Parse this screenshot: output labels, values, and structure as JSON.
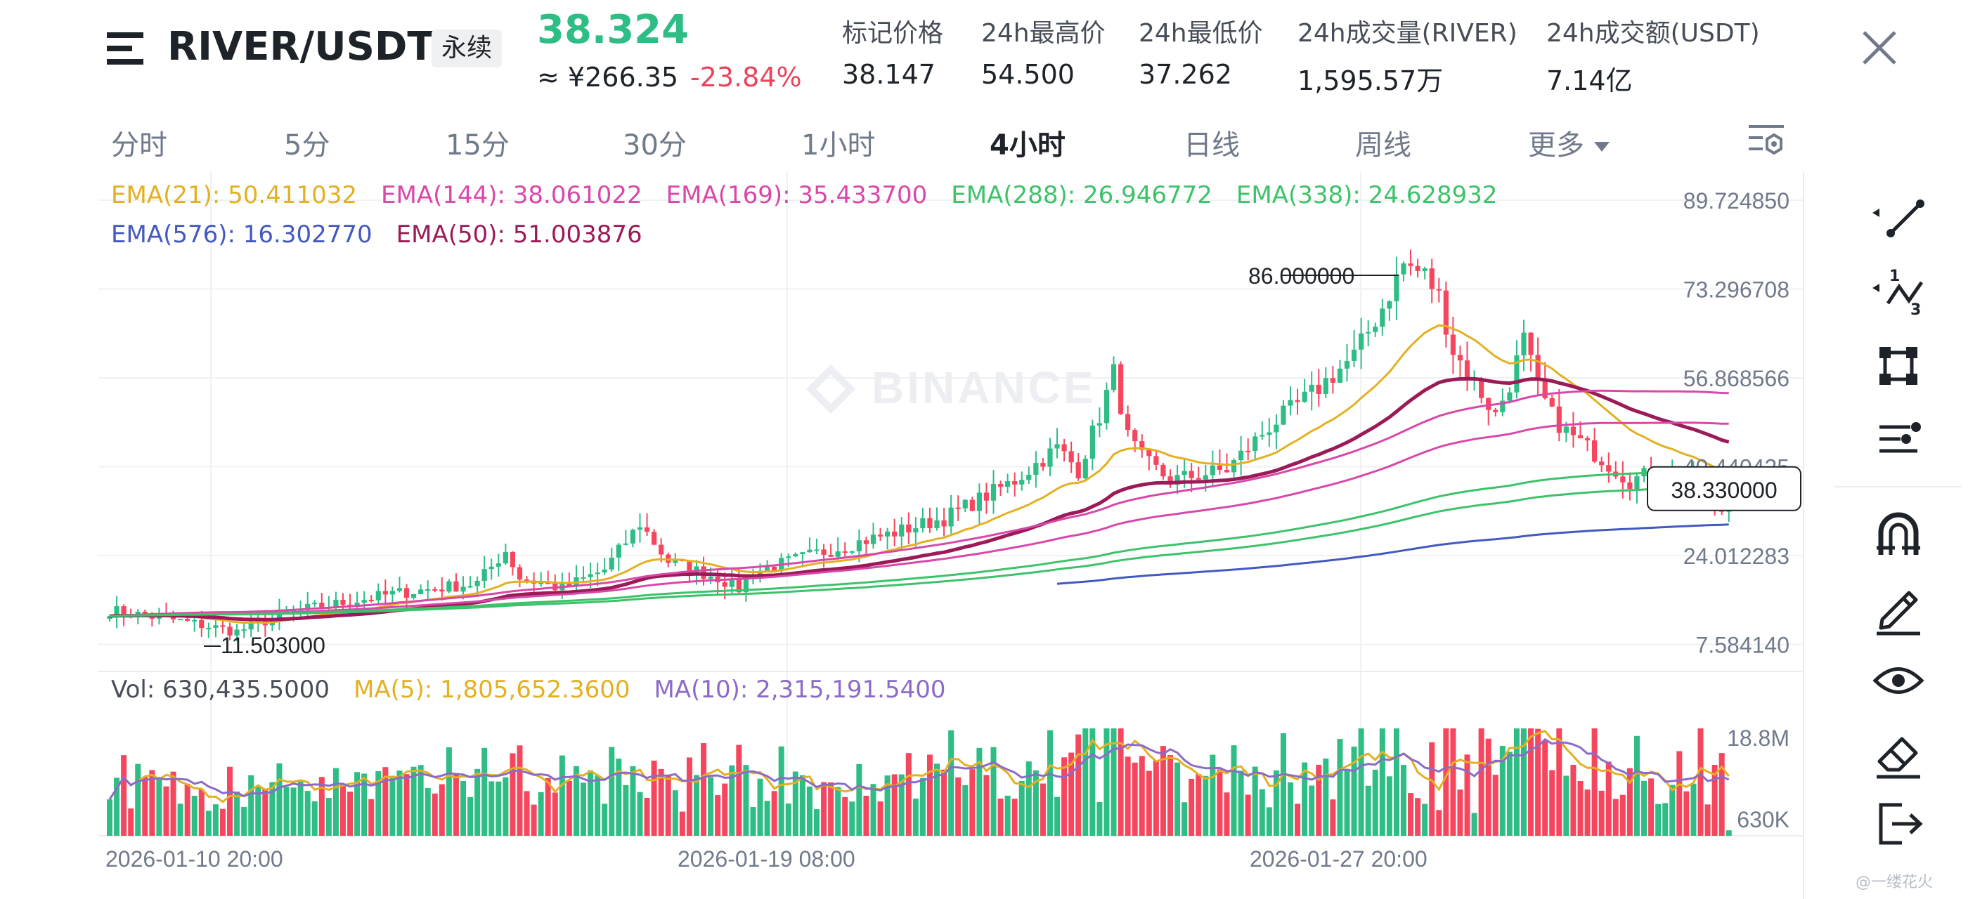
{
  "header": {
    "symbol": "RIVER/USDT",
    "contract_type": "永续",
    "last_price": "38.324",
    "cny_price": "≈ ¥266.35",
    "change_pct": "-23.84%",
    "stats": [
      {
        "label": "标记价格",
        "value": "38.147"
      },
      {
        "label": "24h最高价",
        "value": "54.500"
      },
      {
        "label": "24h最低价",
        "value": "37.262"
      },
      {
        "label": "24h成交量(RIVER)",
        "value": "1,595.57万"
      },
      {
        "label": "24h成交额(USDT)",
        "value": "7.14亿"
      }
    ]
  },
  "tabs": {
    "items": [
      "分时",
      "5分",
      "15分",
      "30分",
      "1小时",
      "4小时",
      "日线",
      "周线"
    ],
    "active_index": 5,
    "more_label": "更多"
  },
  "indicators": {
    "ema_row1": [
      {
        "text": "EMA(21): 50.411032",
        "color": "#e3b021"
      },
      {
        "text": "EMA(144): 38.061022",
        "color": "#d948a8"
      },
      {
        "text": "EMA(169): 35.433700",
        "color": "#d948a8"
      },
      {
        "text": "EMA(288): 26.946772",
        "color": "#3dc26a"
      },
      {
        "text": "EMA(338): 24.628932",
        "color": "#3dc26a"
      }
    ],
    "ema_row2": [
      {
        "text": "EMA(576): 16.302770",
        "color": "#4359c0"
      },
      {
        "text": "EMA(50): 51.003876",
        "color": "#9b1a57"
      }
    ],
    "vol_row": [
      {
        "text": "Vol: 630,435.5000",
        "color": "#474d57"
      },
      {
        "text": "MA(5): 1,805,652.3600",
        "color": "#e3b021"
      },
      {
        "text": "MA(10): 2,315,191.5400",
        "color": "#8c6bc8"
      }
    ]
  },
  "chart_data": {
    "type": "candlestick",
    "price_axis": {
      "ticks": [
        "89.724850",
        "73.296708",
        "56.868566",
        "40.440425",
        "24.012283",
        "7.584140"
      ]
    },
    "volume_axis": {
      "ticks": [
        "18.8M",
        "630K"
      ]
    },
    "time_axis": {
      "ticks": [
        "2026-01-10 20:00",
        "2026-01-19 08:00",
        "2026-01-27 20:00"
      ]
    },
    "high_label": "86.000000",
    "low_label": "11.503000",
    "current_price_label": "38.330000",
    "watermark": "BINANCE",
    "colors": {
      "up": "#2ebd85",
      "down": "#f6465d"
    }
  },
  "toolbar": {
    "icons": [
      "line-tool-icon",
      "fib-tool-icon",
      "shape-tool-icon",
      "indicator-list-icon",
      "magnet-icon",
      "pencil-icon",
      "eye-icon",
      "eraser-icon",
      "exit-icon"
    ]
  },
  "footer": {
    "credit": "@一缕花火"
  }
}
